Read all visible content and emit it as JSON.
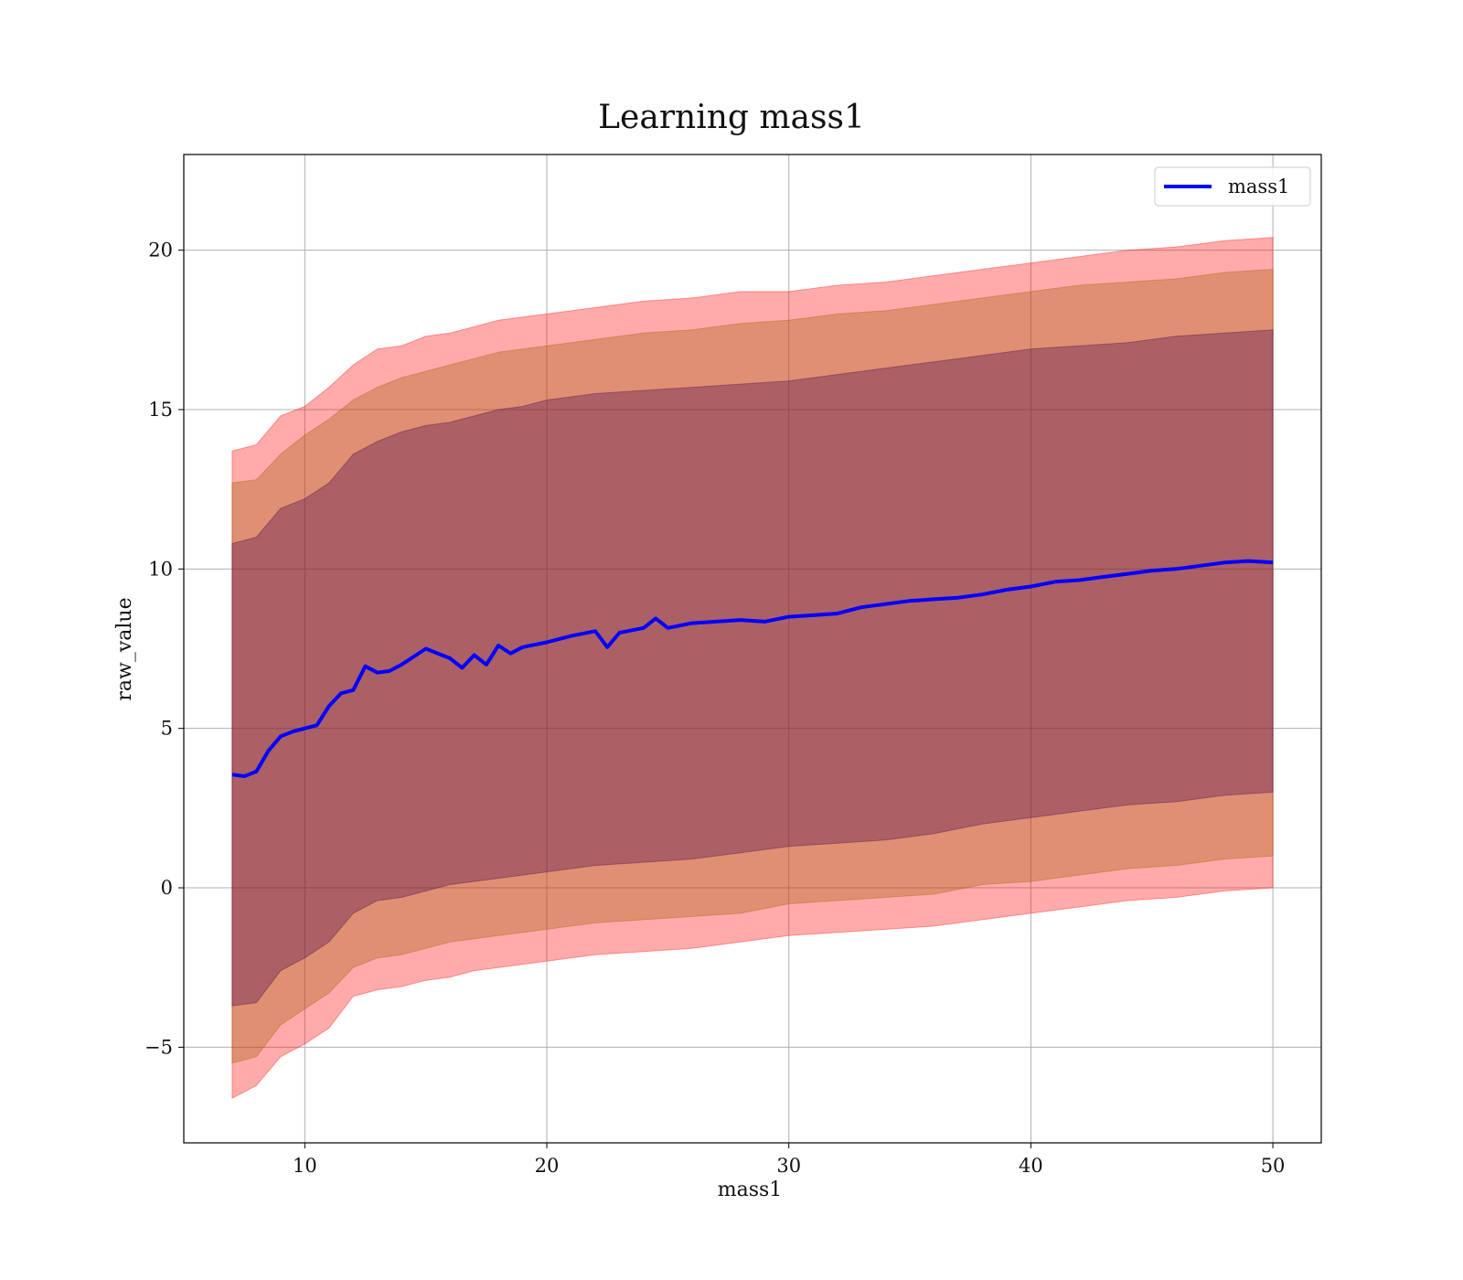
{
  "chart_data": {
    "type": "area",
    "title": "Learning mass1",
    "xlabel": "mass1",
    "ylabel": "raw_value",
    "xlim": [
      5,
      52
    ],
    "ylim": [
      -8,
      23
    ],
    "xticks": [
      10,
      20,
      30,
      40,
      50
    ],
    "yticks": [
      -5,
      0,
      5,
      10,
      15,
      20
    ],
    "ytick_labels": [
      "−5",
      "0",
      "5",
      "10",
      "15",
      "20"
    ],
    "grid": true,
    "legend": {
      "position": "top-right",
      "entries": [
        "mass1"
      ]
    },
    "mean_series": {
      "name": "mass1",
      "color": "#0000ff",
      "x": [
        7,
        7.5,
        8,
        8.5,
        9,
        9.5,
        10,
        10.5,
        11,
        11.5,
        12,
        12.5,
        13,
        13.5,
        14,
        15,
        16,
        16.5,
        17,
        17.5,
        18,
        18.5,
        19,
        20,
        21,
        22,
        22.5,
        23,
        24,
        24.5,
        25,
        26,
        27,
        28,
        29,
        30,
        31,
        32,
        33,
        34,
        35,
        36,
        37,
        38,
        39,
        40,
        41,
        42,
        43,
        44,
        45,
        46,
        47,
        48,
        49,
        50
      ],
      "y": [
        3.55,
        3.5,
        3.65,
        4.3,
        4.75,
        4.9,
        5.0,
        5.1,
        5.7,
        6.1,
        6.2,
        6.95,
        6.75,
        6.8,
        7.0,
        7.5,
        7.2,
        6.9,
        7.3,
        7.0,
        7.6,
        7.35,
        7.55,
        7.7,
        7.9,
        8.05,
        7.55,
        8.0,
        8.15,
        8.45,
        8.15,
        8.3,
        8.35,
        8.4,
        8.35,
        8.5,
        8.55,
        8.6,
        8.8,
        8.9,
        9.0,
        9.05,
        9.1,
        9.2,
        9.35,
        9.45,
        9.6,
        9.65,
        9.75,
        9.85,
        9.95,
        10.0,
        10.1,
        10.2,
        10.25,
        10.2
      ]
    },
    "bands": [
      {
        "level": "outer",
        "color": "#ff0000",
        "opacity": 0.33,
        "x": [
          7,
          8,
          9,
          10,
          11,
          12,
          13,
          14,
          15,
          16,
          17,
          18,
          19,
          20,
          22,
          24,
          26,
          28,
          30,
          32,
          34,
          36,
          38,
          40,
          42,
          44,
          46,
          48,
          50
        ],
        "upper": [
          13.7,
          13.9,
          14.8,
          15.1,
          15.7,
          16.4,
          16.9,
          17.0,
          17.3,
          17.4,
          17.6,
          17.8,
          17.9,
          18.0,
          18.2,
          18.4,
          18.5,
          18.7,
          18.7,
          18.9,
          19.0,
          19.2,
          19.4,
          19.6,
          19.8,
          20.0,
          20.1,
          20.3,
          20.4
        ],
        "lower": [
          -6.6,
          -6.2,
          -5.3,
          -4.9,
          -4.4,
          -3.4,
          -3.2,
          -3.1,
          -2.9,
          -2.8,
          -2.6,
          -2.5,
          -2.4,
          -2.3,
          -2.1,
          -2.0,
          -1.9,
          -1.7,
          -1.5,
          -1.4,
          -1.3,
          -1.2,
          -1.0,
          -0.8,
          -0.6,
          -0.4,
          -0.3,
          -0.1,
          0.0
        ]
      },
      {
        "level": "middle",
        "color": "#a05a00",
        "opacity": 0.33,
        "x": [
          7,
          8,
          9,
          10,
          11,
          12,
          13,
          14,
          15,
          16,
          17,
          18,
          19,
          20,
          22,
          24,
          26,
          28,
          30,
          32,
          34,
          36,
          38,
          40,
          42,
          44,
          46,
          48,
          50
        ],
        "upper": [
          12.7,
          12.8,
          13.6,
          14.2,
          14.7,
          15.3,
          15.7,
          16.0,
          16.2,
          16.4,
          16.6,
          16.8,
          16.9,
          17.0,
          17.2,
          17.4,
          17.5,
          17.7,
          17.8,
          18.0,
          18.1,
          18.3,
          18.5,
          18.7,
          18.9,
          19.0,
          19.1,
          19.3,
          19.4
        ],
        "lower": [
          -5.5,
          -5.3,
          -4.3,
          -3.8,
          -3.3,
          -2.5,
          -2.2,
          -2.1,
          -1.9,
          -1.7,
          -1.6,
          -1.5,
          -1.4,
          -1.3,
          -1.1,
          -1.0,
          -0.9,
          -0.8,
          -0.5,
          -0.4,
          -0.3,
          -0.2,
          0.1,
          0.2,
          0.4,
          0.6,
          0.7,
          0.9,
          1.0
        ]
      },
      {
        "level": "inner",
        "color": "#400050",
        "opacity": 0.33,
        "x": [
          7,
          8,
          9,
          10,
          11,
          12,
          13,
          14,
          15,
          16,
          17,
          18,
          19,
          20,
          22,
          24,
          26,
          28,
          30,
          32,
          34,
          36,
          38,
          40,
          42,
          44,
          46,
          48,
          50
        ],
        "upper": [
          10.8,
          11.0,
          11.9,
          12.2,
          12.7,
          13.6,
          14.0,
          14.3,
          14.5,
          14.6,
          14.8,
          15.0,
          15.1,
          15.3,
          15.5,
          15.6,
          15.7,
          15.8,
          15.9,
          16.1,
          16.3,
          16.5,
          16.7,
          16.9,
          17.0,
          17.1,
          17.3,
          17.4,
          17.5
        ],
        "lower": [
          -3.7,
          -3.6,
          -2.6,
          -2.2,
          -1.7,
          -0.8,
          -0.4,
          -0.3,
          -0.1,
          0.1,
          0.2,
          0.3,
          0.4,
          0.5,
          0.7,
          0.8,
          0.9,
          1.1,
          1.3,
          1.4,
          1.5,
          1.7,
          2.0,
          2.2,
          2.4,
          2.6,
          2.7,
          2.9,
          3.0
        ]
      }
    ]
  }
}
